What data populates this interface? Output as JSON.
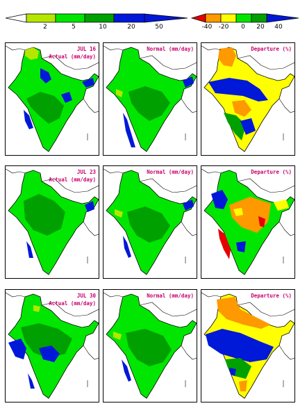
{
  "legend_precip": {
    "labels": [
      "2",
      "5",
      "10",
      "20",
      "50"
    ],
    "colors": [
      "#ffffff",
      "#b4e600",
      "#00e600",
      "#00a000",
      "#0018d8"
    ],
    "units": "mm/day"
  },
  "legend_departure": {
    "labels": [
      "-40",
      "-20",
      "0",
      "20",
      "40"
    ],
    "colors": [
      "#e60000",
      "#ff9900",
      "#ffff00",
      "#00e600",
      "#00a000",
      "#0018d8"
    ],
    "units": "%"
  },
  "rows": [
    {
      "week": "JUL 16",
      "actual_title": "Actual (mm/day)",
      "normal_title": "Normal (mm/day)",
      "departure_title": "Departure (%)"
    },
    {
      "week": "JUL 23",
      "actual_title": "Actual (mm/day)",
      "normal_title": "Normal (mm/day)",
      "departure_title": "Departure (%)"
    },
    {
      "week": "JUL 30",
      "actual_title": "Actual (mm/day)",
      "normal_title": "Normal (mm/day)",
      "departure_title": "Departure (%)"
    }
  ]
}
